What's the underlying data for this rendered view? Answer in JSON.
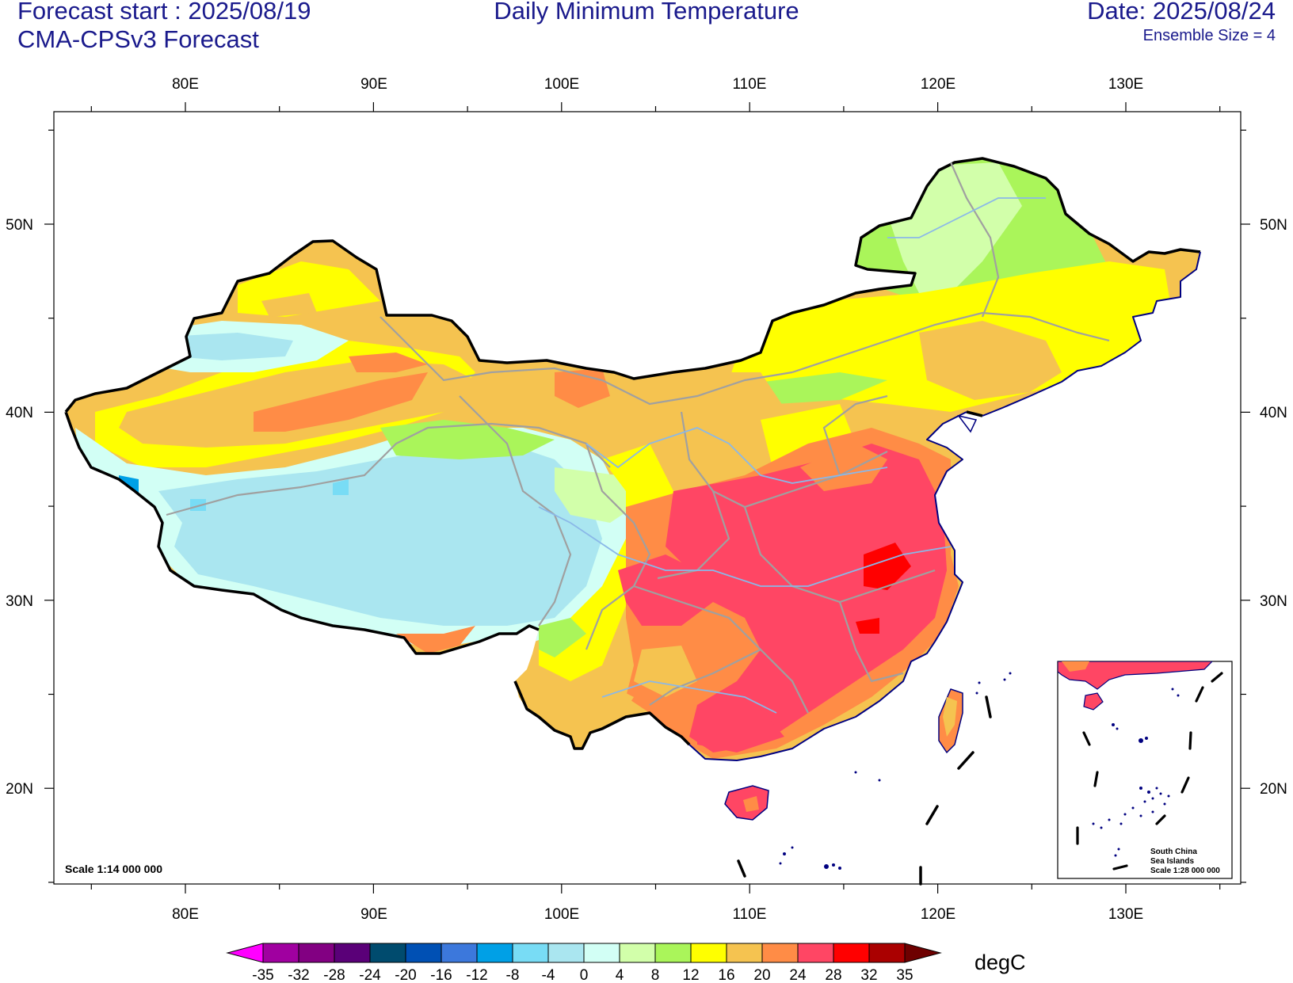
{
  "header": {
    "forecast_start": "Forecast start : 2025/08/19",
    "model": "CMA-CPSv3 Forecast",
    "title": "Daily Minimum Temperature",
    "date": "Date: 2025/08/24",
    "ensemble": "Ensemble Size = 4"
  },
  "map": {
    "lon_labels": [
      "80E",
      "90E",
      "100E",
      "110E",
      "120E",
      "130E"
    ],
    "lat_labels": [
      "50N",
      "40N",
      "30N",
      "20N"
    ],
    "scale": "Scale 1:14 000 000",
    "inset": {
      "line1": "South China",
      "line2": "Sea Islands",
      "line3": "Scale 1:28 000 000"
    }
  },
  "colorbar": {
    "unit": "degC",
    "ticks": [
      "-35",
      "-32",
      "-28",
      "-24",
      "-20",
      "-16",
      "-12",
      "-8",
      "-4",
      "0",
      "4",
      "8",
      "12",
      "16",
      "20",
      "24",
      "28",
      "32",
      "35"
    ],
    "colors": [
      "#ff00ff",
      "#a000a0",
      "#820082",
      "#5a0078",
      "#004b6e",
      "#0050b4",
      "#3c78dc",
      "#00a0e6",
      "#78dcf5",
      "#aae6f0",
      "#d2fff5",
      "#d2ffaa",
      "#aaf55a",
      "#ffff00",
      "#f5c350",
      "#ff8c46",
      "#ff4664",
      "#ff0000",
      "#aa0000",
      "#6e0000"
    ]
  },
  "chart_data": {
    "type": "map",
    "title": "Daily Minimum Temperature",
    "variable": "Daily Minimum Temperature",
    "unit": "degC",
    "lon_range": [
      73,
      136
    ],
    "lat_range": [
      15,
      55
    ],
    "levels": [
      -35,
      -32,
      -28,
      -24,
      -20,
      -16,
      -12,
      -8,
      -4,
      0,
      4,
      8,
      12,
      16,
      20,
      24,
      28,
      32,
      35
    ]
  }
}
